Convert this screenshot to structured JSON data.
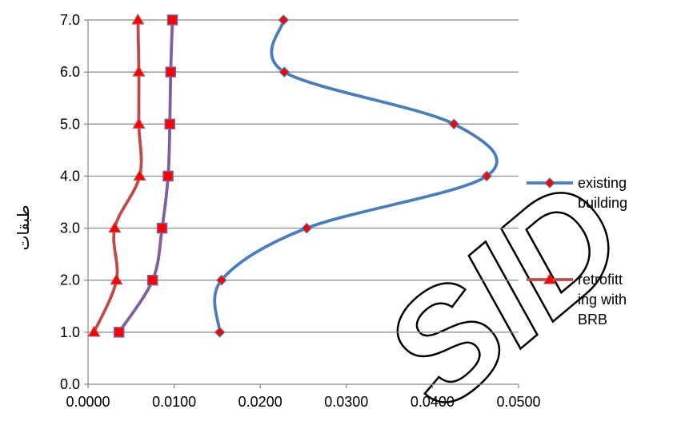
{
  "chart_data": {
    "type": "line",
    "title": "",
    "xlabel": "",
    "ylabel": "طبقات",
    "xlim": [
      0,
      0.05
    ],
    "ylim": [
      0,
      7
    ],
    "x_ticks": [
      "0.0000",
      "0.0100",
      "0.0200",
      "0.0300",
      "0.0400",
      "0.0500"
    ],
    "y_ticks": [
      "0.0",
      "1.0",
      "2.0",
      "3.0",
      "4.0",
      "5.0",
      "6.0",
      "7.0"
    ],
    "grid": true,
    "legend_position": "right",
    "series": [
      {
        "name": "existing building",
        "legend_lines": [
          "existing",
          "building"
        ],
        "color": "#4a7ebb",
        "marker": "diamond",
        "marker_color": "#ff0000",
        "points": [
          {
            "x": 0.0153,
            "y": 1
          },
          {
            "x": 0.0155,
            "y": 2
          },
          {
            "x": 0.0254,
            "y": 3
          },
          {
            "x": 0.0463,
            "y": 4
          },
          {
            "x": 0.0425,
            "y": 5
          },
          {
            "x": 0.0228,
            "y": 6
          },
          {
            "x": 0.0227,
            "y": 7
          }
        ]
      },
      {
        "name": "retrofitting with BRB",
        "legend_lines": [
          "retrofitt",
          "ing with",
          "BRB"
        ],
        "color": "#be4b48",
        "marker": "triangle",
        "marker_color": "#ff0000",
        "points": [
          {
            "x": 0.0007,
            "y": 1
          },
          {
            "x": 0.0033,
            "y": 2
          },
          {
            "x": 0.0031,
            "y": 3
          },
          {
            "x": 0.006,
            "y": 4
          },
          {
            "x": 0.0059,
            "y": 5
          },
          {
            "x": 0.0059,
            "y": 6
          },
          {
            "x": 0.0058,
            "y": 7
          }
        ]
      },
      {
        "color": "#7d60a0",
        "marker": "square",
        "marker_color": "#ff0000",
        "points": [
          {
            "x": 0.0036,
            "y": 1
          },
          {
            "x": 0.0075,
            "y": 2
          },
          {
            "x": 0.0086,
            "y": 3
          },
          {
            "x": 0.0093,
            "y": 4
          },
          {
            "x": 0.0095,
            "y": 5
          },
          {
            "x": 0.0096,
            "y": 6
          },
          {
            "x": 0.0098,
            "y": 7
          }
        ]
      }
    ],
    "watermark": "SID"
  }
}
